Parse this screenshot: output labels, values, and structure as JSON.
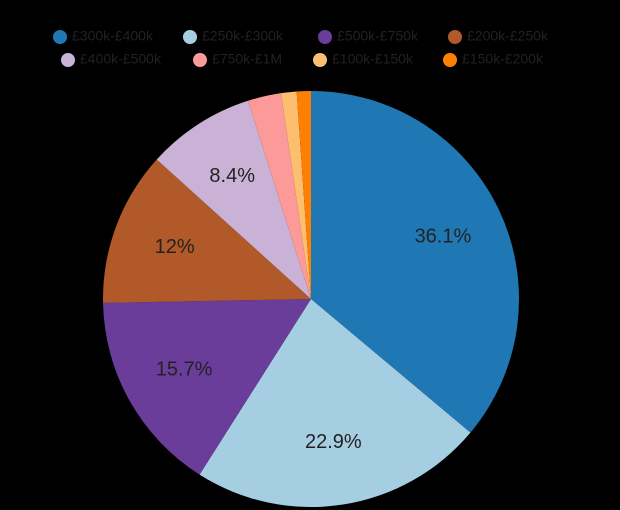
{
  "chart_data": {
    "type": "pie",
    "categories": [
      "£300k-£400k",
      "£250k-£300k",
      "£500k-£750k",
      "£200k-£250k",
      "£400k-£500k",
      "£750k-£1M",
      "£100k-£150k",
      "£150k-£200k"
    ],
    "values": [
      36.1,
      22.9,
      15.7,
      12,
      8.4,
      2.6,
      1.2,
      1.1
    ],
    "value_labels": [
      "36.1%",
      "22.9%",
      "15.7%",
      "12%",
      "8.4%",
      null,
      null,
      null
    ],
    "colors": [
      "#1f78b4",
      "#a6cee3",
      "#6a3d9a",
      "#b15928",
      "#cab2d6",
      "#fb9a99",
      "#fdbf6f",
      "#ff7f00"
    ],
    "legend": "top"
  }
}
